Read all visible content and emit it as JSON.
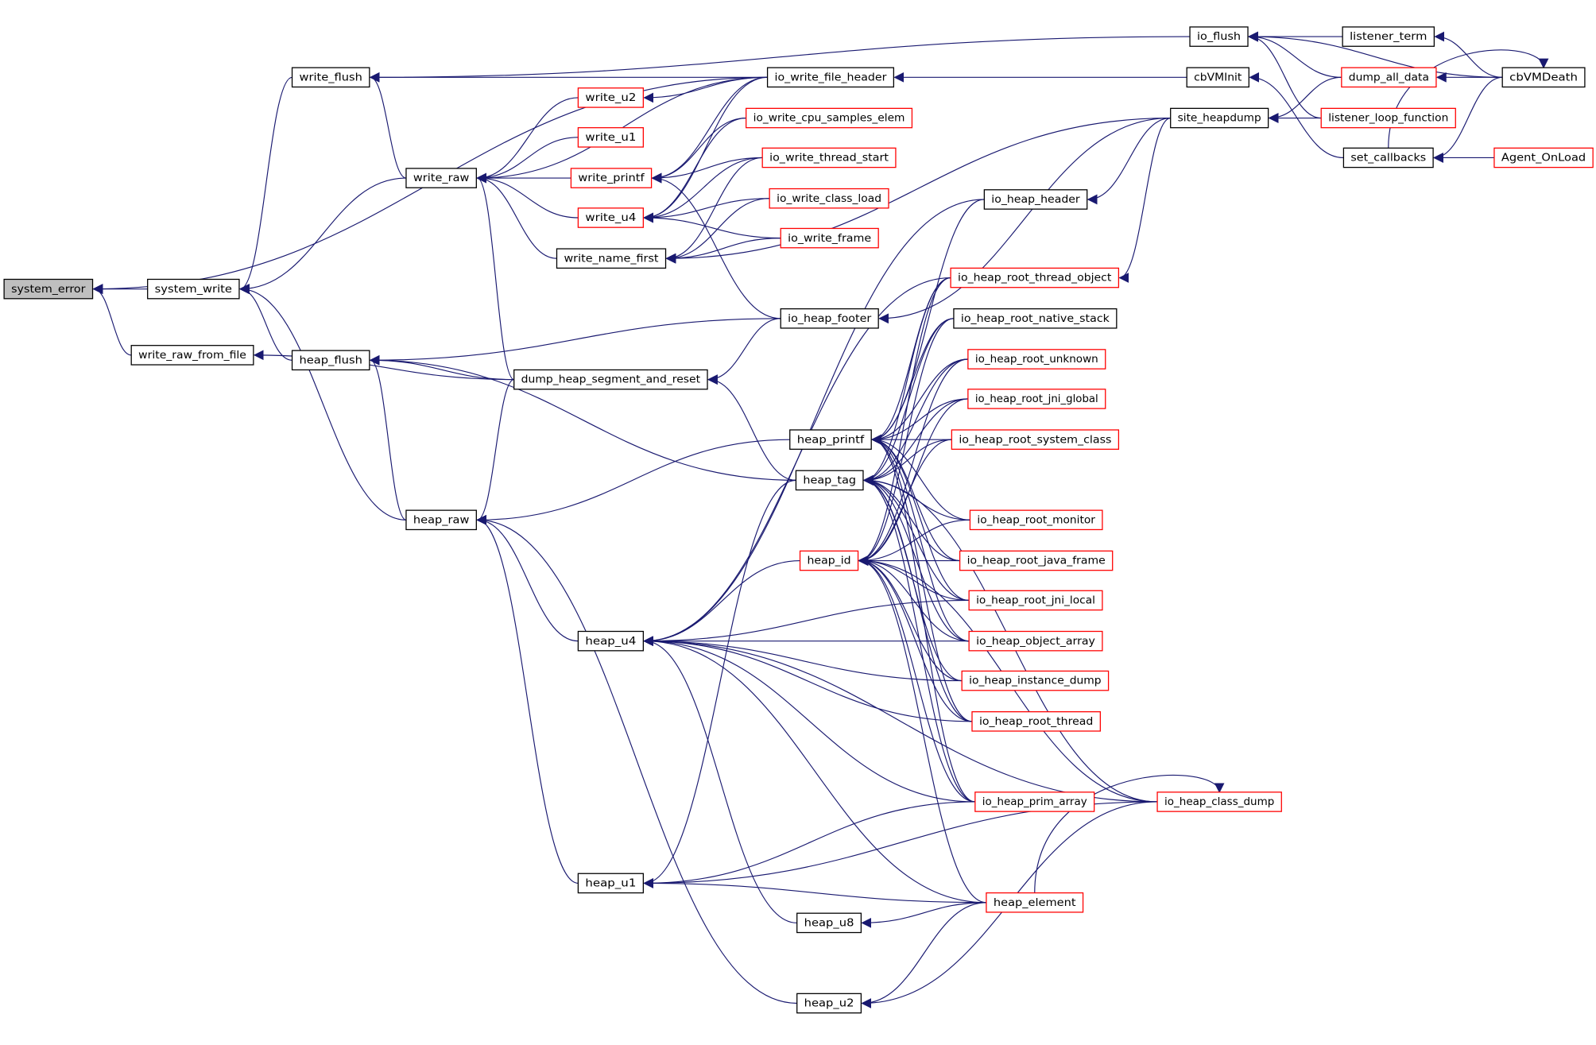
{
  "colors": {
    "edge": "#191970",
    "external_border": "#ff0000",
    "normal_border": "#000000",
    "focus_fill": "#bfbfbf"
  },
  "focus_node": "system_error",
  "nodes": [
    {
      "id": "system_error",
      "label": "system_error",
      "red": false
    },
    {
      "id": "system_write",
      "label": "system_write",
      "red": false
    },
    {
      "id": "write_raw_from_file",
      "label": "write_raw_from_file",
      "red": false
    },
    {
      "id": "write_flush",
      "label": "write_flush",
      "red": false
    },
    {
      "id": "write_raw",
      "label": "write_raw",
      "red": false
    },
    {
      "id": "heap_flush",
      "label": "heap_flush",
      "red": false
    },
    {
      "id": "heap_raw",
      "label": "heap_raw",
      "red": false
    },
    {
      "id": "write_u2",
      "label": "write_u2",
      "red": true
    },
    {
      "id": "write_u1",
      "label": "write_u1",
      "red": true
    },
    {
      "id": "write_printf",
      "label": "write_printf",
      "red": true
    },
    {
      "id": "write_u4",
      "label": "write_u4",
      "red": true
    },
    {
      "id": "write_name_first",
      "label": "write_name_first",
      "red": false
    },
    {
      "id": "dump_heap_segment_and_reset",
      "label": "dump_heap_segment_and_reset",
      "red": false
    },
    {
      "id": "heap_u4",
      "label": "heap_u4",
      "red": false
    },
    {
      "id": "heap_u1",
      "label": "heap_u1",
      "red": false
    },
    {
      "id": "heap_printf",
      "label": "heap_printf",
      "red": false
    },
    {
      "id": "heap_tag",
      "label": "heap_tag",
      "red": false
    },
    {
      "id": "heap_id",
      "label": "heap_id",
      "red": true
    },
    {
      "id": "heap_u8",
      "label": "heap_u8",
      "red": false
    },
    {
      "id": "heap_u2",
      "label": "heap_u2",
      "red": false
    },
    {
      "id": "io_write_file_header",
      "label": "io_write_file_header",
      "red": false
    },
    {
      "id": "io_write_cpu_samples_elem",
      "label": "io_write_cpu_samples_elem",
      "red": true
    },
    {
      "id": "io_write_thread_start",
      "label": "io_write_thread_start",
      "red": true
    },
    {
      "id": "io_write_class_load",
      "label": "io_write_class_load",
      "red": true
    },
    {
      "id": "io_write_frame",
      "label": "io_write_frame",
      "red": true
    },
    {
      "id": "io_heap_footer",
      "label": "io_heap_footer",
      "red": false
    },
    {
      "id": "io_heap_header",
      "label": "io_heap_header",
      "red": false
    },
    {
      "id": "io_heap_root_thread_object",
      "label": "io_heap_root_thread_object",
      "red": true
    },
    {
      "id": "io_heap_root_native_stack",
      "label": "io_heap_root_native_stack",
      "red": false
    },
    {
      "id": "io_heap_root_unknown",
      "label": "io_heap_root_unknown",
      "red": true
    },
    {
      "id": "io_heap_root_jni_global",
      "label": "io_heap_root_jni_global",
      "red": true
    },
    {
      "id": "io_heap_root_system_class",
      "label": "io_heap_root_system_class",
      "red": true
    },
    {
      "id": "io_heap_root_monitor",
      "label": "io_heap_root_monitor",
      "red": true
    },
    {
      "id": "io_heap_root_java_frame",
      "label": "io_heap_root_java_frame",
      "red": true
    },
    {
      "id": "io_heap_root_jni_local",
      "label": "io_heap_root_jni_local",
      "red": true
    },
    {
      "id": "io_heap_object_array",
      "label": "io_heap_object_array",
      "red": true
    },
    {
      "id": "io_heap_instance_dump",
      "label": "io_heap_instance_dump",
      "red": true
    },
    {
      "id": "io_heap_root_thread",
      "label": "io_heap_root_thread",
      "red": true
    },
    {
      "id": "io_heap_prim_array",
      "label": "io_heap_prim_array",
      "red": true
    },
    {
      "id": "io_heap_class_dump",
      "label": "io_heap_class_dump",
      "red": true
    },
    {
      "id": "heap_element",
      "label": "heap_element",
      "red": true
    },
    {
      "id": "io_flush",
      "label": "io_flush",
      "red": false
    },
    {
      "id": "cbVMInit",
      "label": "cbVMInit",
      "red": false
    },
    {
      "id": "site_heapdump",
      "label": "site_heapdump",
      "red": false
    },
    {
      "id": "listener_term",
      "label": "listener_term",
      "red": false
    },
    {
      "id": "dump_all_data",
      "label": "dump_all_data",
      "red": true
    },
    {
      "id": "listener_loop_function",
      "label": "listener_loop_function",
      "red": true
    },
    {
      "id": "set_callbacks",
      "label": "set_callbacks",
      "red": false
    },
    {
      "id": "cbVMDeath",
      "label": "cbVMDeath",
      "red": false
    },
    {
      "id": "Agent_OnLoad",
      "label": "Agent_OnLoad",
      "red": true
    }
  ],
  "edges": [
    [
      "system_write",
      "system_error"
    ],
    [
      "write_raw_from_file",
      "system_error"
    ],
    [
      "io_write_file_header",
      "system_error"
    ],
    [
      "write_flush",
      "system_write"
    ],
    [
      "write_raw",
      "system_write"
    ],
    [
      "heap_flush",
      "system_write"
    ],
    [
      "heap_raw",
      "system_write"
    ],
    [
      "write_raw",
      "write_flush"
    ],
    [
      "io_flush",
      "write_flush"
    ],
    [
      "io_write_file_header",
      "write_flush"
    ],
    [
      "write_u2",
      "write_raw"
    ],
    [
      "write_u1",
      "write_raw"
    ],
    [
      "write_printf",
      "write_raw"
    ],
    [
      "write_u4",
      "write_raw"
    ],
    [
      "write_name_first",
      "write_raw"
    ],
    [
      "dump_heap_segment_and_reset",
      "write_raw"
    ],
    [
      "io_write_file_header",
      "write_raw"
    ],
    [
      "dump_heap_segment_and_reset",
      "write_raw_from_file"
    ],
    [
      "dump_heap_segment_and_reset",
      "heap_flush"
    ],
    [
      "io_heap_footer",
      "heap_flush"
    ],
    [
      "heap_tag",
      "heap_flush"
    ],
    [
      "heap_raw",
      "heap_flush"
    ],
    [
      "heap_printf",
      "heap_raw"
    ],
    [
      "heap_u4",
      "heap_raw"
    ],
    [
      "heap_u1",
      "heap_raw"
    ],
    [
      "heap_u2",
      "heap_raw"
    ],
    [
      "dump_heap_segment_and_reset",
      "heap_raw"
    ],
    [
      "io_write_file_header",
      "write_u2"
    ],
    [
      "io_write_file_header",
      "write_printf"
    ],
    [
      "io_write_cpu_samples_elem",
      "write_printf"
    ],
    [
      "io_write_thread_start",
      "write_printf"
    ],
    [
      "io_heap_footer",
      "write_printf"
    ],
    [
      "io_write_file_header",
      "write_u4"
    ],
    [
      "io_write_cpu_samples_elem",
      "write_u4"
    ],
    [
      "io_write_thread_start",
      "write_u4"
    ],
    [
      "io_write_class_load",
      "write_u4"
    ],
    [
      "io_write_frame",
      "write_u4"
    ],
    [
      "io_write_thread_start",
      "write_name_first"
    ],
    [
      "io_write_class_load",
      "write_name_first"
    ],
    [
      "io_write_frame",
      "write_name_first"
    ],
    [
      "site_heapdump",
      "write_name_first"
    ],
    [
      "io_heap_footer",
      "dump_heap_segment_and_reset"
    ],
    [
      "heap_tag",
      "dump_heap_segment_and_reset"
    ],
    [
      "cbVMInit",
      "io_write_file_header"
    ],
    [
      "listener_term",
      "io_flush"
    ],
    [
      "dump_all_data",
      "io_flush"
    ],
    [
      "listener_loop_function",
      "io_flush"
    ],
    [
      "cbVMDeath",
      "io_flush"
    ],
    [
      "set_callbacks",
      "cbVMInit"
    ],
    [
      "dump_all_data",
      "site_heapdump"
    ],
    [
      "listener_loop_function",
      "site_heapdump"
    ],
    [
      "site_heapdump",
      "io_heap_header"
    ],
    [
      "site_heapdump",
      "io_heap_footer"
    ],
    [
      "site_heapdump",
      "io_heap_root_thread_object"
    ],
    [
      "cbVMDeath",
      "listener_term"
    ],
    [
      "cbVMDeath",
      "dump_all_data"
    ],
    [
      "set_callbacks",
      "cbVMDeath"
    ],
    [
      "Agent_OnLoad",
      "set_callbacks"
    ],
    [
      "cbVMDeath",
      "set_callbacks"
    ],
    [
      "io_heap_header",
      "heap_printf"
    ],
    [
      "io_heap_root_thread_object",
      "heap_printf"
    ],
    [
      "io_heap_root_native_stack",
      "heap_printf"
    ],
    [
      "io_heap_root_unknown",
      "heap_printf"
    ],
    [
      "io_heap_root_jni_global",
      "heap_printf"
    ],
    [
      "io_heap_root_system_class",
      "heap_printf"
    ],
    [
      "io_heap_root_monitor",
      "heap_printf"
    ],
    [
      "io_heap_root_java_frame",
      "heap_printf"
    ],
    [
      "io_heap_root_jni_local",
      "heap_printf"
    ],
    [
      "io_heap_object_array",
      "heap_printf"
    ],
    [
      "io_heap_root_thread",
      "heap_printf"
    ],
    [
      "io_heap_prim_array",
      "heap_printf"
    ],
    [
      "io_heap_root_thread_object",
      "heap_tag"
    ],
    [
      "io_heap_root_native_stack",
      "heap_tag"
    ],
    [
      "io_heap_root_unknown",
      "heap_tag"
    ],
    [
      "io_heap_root_jni_global",
      "heap_tag"
    ],
    [
      "io_heap_root_system_class",
      "heap_tag"
    ],
    [
      "io_heap_root_monitor",
      "heap_tag"
    ],
    [
      "io_heap_root_java_frame",
      "heap_tag"
    ],
    [
      "io_heap_root_jni_local",
      "heap_tag"
    ],
    [
      "io_heap_object_array",
      "heap_tag"
    ],
    [
      "io_heap_instance_dump",
      "heap_tag"
    ],
    [
      "io_heap_root_thread",
      "heap_tag"
    ],
    [
      "io_heap_prim_array",
      "heap_tag"
    ],
    [
      "io_heap_class_dump",
      "heap_tag"
    ],
    [
      "io_heap_root_thread_object",
      "heap_id"
    ],
    [
      "io_heap_root_native_stack",
      "heap_id"
    ],
    [
      "io_heap_root_unknown",
      "heap_id"
    ],
    [
      "io_heap_root_jni_global",
      "heap_id"
    ],
    [
      "io_heap_root_system_class",
      "heap_id"
    ],
    [
      "io_heap_root_monitor",
      "heap_id"
    ],
    [
      "io_heap_root_java_frame",
      "heap_id"
    ],
    [
      "io_heap_root_jni_local",
      "heap_id"
    ],
    [
      "io_heap_object_array",
      "heap_id"
    ],
    [
      "io_heap_instance_dump",
      "heap_id"
    ],
    [
      "io_heap_root_thread",
      "heap_id"
    ],
    [
      "io_heap_prim_array",
      "heap_id"
    ],
    [
      "io_heap_class_dump",
      "heap_id"
    ],
    [
      "heap_element",
      "heap_id"
    ],
    [
      "io_heap_header",
      "heap_u4"
    ],
    [
      "io_heap_root_thread_object",
      "heap_u4"
    ],
    [
      "io_heap_root_jni_local",
      "heap_u4"
    ],
    [
      "io_heap_object_array",
      "heap_u4"
    ],
    [
      "io_heap_instance_dump",
      "heap_u4"
    ],
    [
      "io_heap_root_thread",
      "heap_u4"
    ],
    [
      "io_heap_prim_array",
      "heap_u4"
    ],
    [
      "io_heap_class_dump",
      "heap_u4"
    ],
    [
      "heap_element",
      "heap_u4"
    ],
    [
      "heap_id",
      "heap_u4"
    ],
    [
      "heap_u8",
      "heap_u4"
    ],
    [
      "heap_tag",
      "heap_u1"
    ],
    [
      "io_heap_prim_array",
      "heap_u1"
    ],
    [
      "heap_element",
      "heap_u1"
    ],
    [
      "io_heap_class_dump",
      "heap_u1"
    ],
    [
      "heap_element",
      "heap_u8"
    ],
    [
      "heap_element",
      "heap_u2"
    ],
    [
      "io_heap_class_dump",
      "heap_u2"
    ],
    [
      "heap_element",
      "io_heap_class_dump"
    ]
  ]
}
